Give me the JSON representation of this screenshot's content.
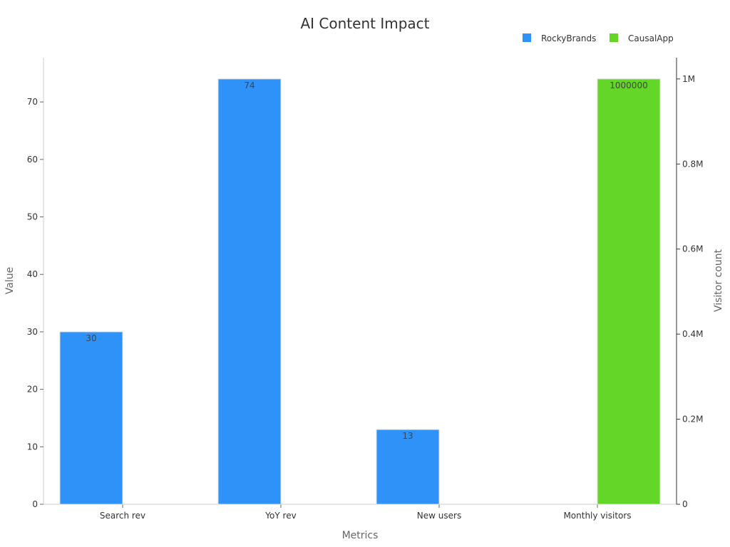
{
  "chart_data": {
    "type": "bar",
    "title": "AI Content Impact",
    "xlabel": "Metrics",
    "ylabel": "Value",
    "y2label": "Visitor count",
    "categories": [
      "Search rev",
      "YoY rev",
      "New users",
      "Monthly visitors"
    ],
    "series": [
      {
        "name": "RockyBrands",
        "axis": "left",
        "color": "#2e92f8",
        "values": [
          30,
          74,
          13,
          null
        ]
      },
      {
        "name": "CausalApp",
        "axis": "right",
        "color": "#63d627",
        "values": [
          null,
          null,
          null,
          1000000
        ]
      }
    ],
    "data_labels": [
      "30",
      "74",
      "13",
      "1000000"
    ],
    "ylim": [
      0,
      77.7
    ],
    "yticks": [
      0,
      10,
      20,
      30,
      40,
      50,
      60,
      70
    ],
    "y2lim": [
      0,
      1050000
    ],
    "y2ticks": [
      0,
      200000,
      400000,
      600000,
      800000,
      1000000
    ],
    "y2tick_labels": [
      "0",
      "0.2M",
      "0.4M",
      "0.6M",
      "0.8M",
      "1M"
    ],
    "legend_position": "top-right",
    "grid": false
  }
}
